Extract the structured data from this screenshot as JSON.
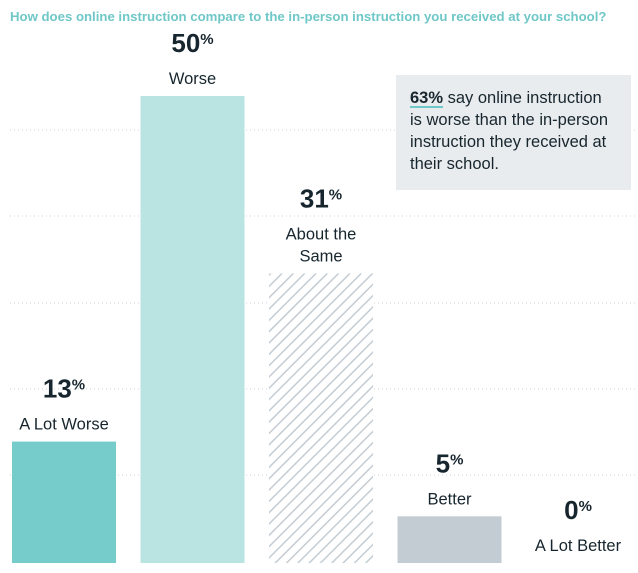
{
  "chart_data": {
    "type": "bar",
    "title": "How does online instruction compare to the in-person instruction you received at your school?",
    "categories": [
      [
        "A Lot Worse"
      ],
      [
        "Worse"
      ],
      [
        "About the",
        "Same"
      ],
      [
        "Better"
      ],
      [
        "A Lot Better"
      ]
    ],
    "values": [
      13,
      50,
      31,
      5,
      0
    ],
    "unit": "%",
    "ylim": [
      0,
      56
    ],
    "grid": true,
    "colors": [
      "#76cccb",
      "#b9e4e2",
      "hatched #c9d1d7",
      "#c4ccd3",
      "#c4ccd3"
    ]
  },
  "callout": {
    "highlight": "63%",
    "text": " say online instruction is worse than the in-person instruction they received at their school."
  }
}
